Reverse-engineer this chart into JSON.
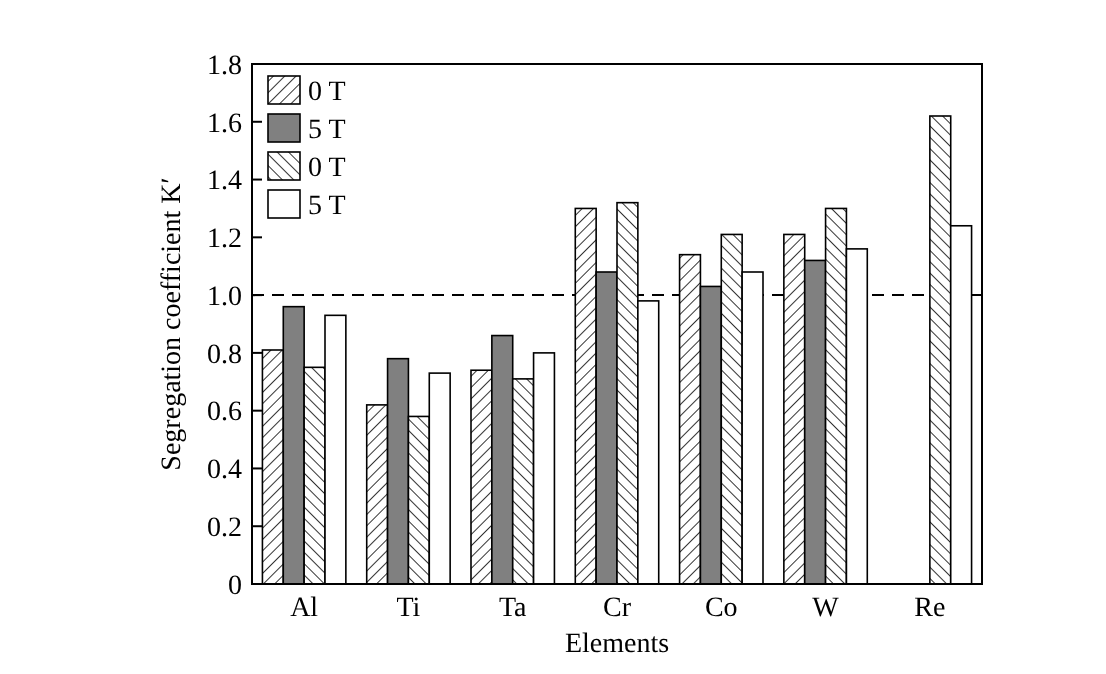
{
  "chart_data": {
    "type": "bar",
    "xlabel": "Elements",
    "ylabel": "Segregation coefficient K′",
    "categories": [
      "Al",
      "Ti",
      "Ta",
      "Cr",
      "Co",
      "W",
      "Re"
    ],
    "series": [
      {
        "name": "0 T",
        "color": "#000000",
        "values": [
          0.81,
          0.62,
          0.74,
          1.3,
          1.14,
          1.21,
          null
        ]
      },
      {
        "name": "5 T",
        "color": "#808080",
        "values": [
          0.96,
          0.78,
          0.86,
          1.08,
          1.03,
          1.12,
          null
        ]
      },
      {
        "name": "0 T",
        "color": "#000000",
        "values": [
          0.75,
          0.58,
          0.71,
          1.32,
          1.21,
          1.3,
          1.62
        ]
      },
      {
        "name": "5 T",
        "color": "#ffffff",
        "values": [
          0.93,
          0.73,
          0.8,
          0.98,
          1.08,
          1.16,
          1.24
        ]
      }
    ],
    "ylim": [
      0,
      1.8
    ],
    "yticks": [
      0,
      0.2,
      0.4,
      0.6,
      0.8,
      {
        "value": 1,
        "label": "1.0"
      },
      1.2,
      1.4,
      1.6,
      1.8
    ],
    "ref_lines": [
      {
        "axis": "y",
        "value": 1.0,
        "line_style": "dashed"
      }
    ],
    "legend": "top left"
  }
}
